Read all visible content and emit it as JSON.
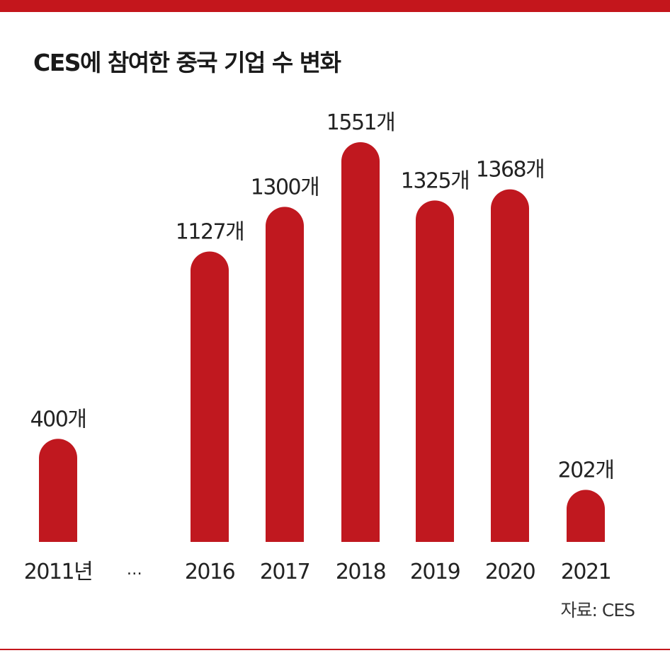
{
  "title": "CES에 참여한 중국 기업 수 변화",
  "source": "자료: CES",
  "colors": {
    "accent": "#c4161c",
    "bar": "#c0181f"
  },
  "chart_data": {
    "type": "bar",
    "title": "CES에 참여한 중국 기업 수 변화",
    "categories": [
      "2011년",
      "…",
      "2016",
      "2017",
      "2018",
      "2019",
      "2020",
      "2021"
    ],
    "values": [
      400,
      null,
      1127,
      1300,
      1551,
      1325,
      1368,
      202
    ],
    "value_labels": [
      "400개",
      "",
      "1127개",
      "1300개",
      "1551개",
      "1325개",
      "1368개",
      "202개"
    ],
    "unit": "개",
    "ylim": [
      0,
      1700
    ],
    "grid": false,
    "legend": "none"
  }
}
